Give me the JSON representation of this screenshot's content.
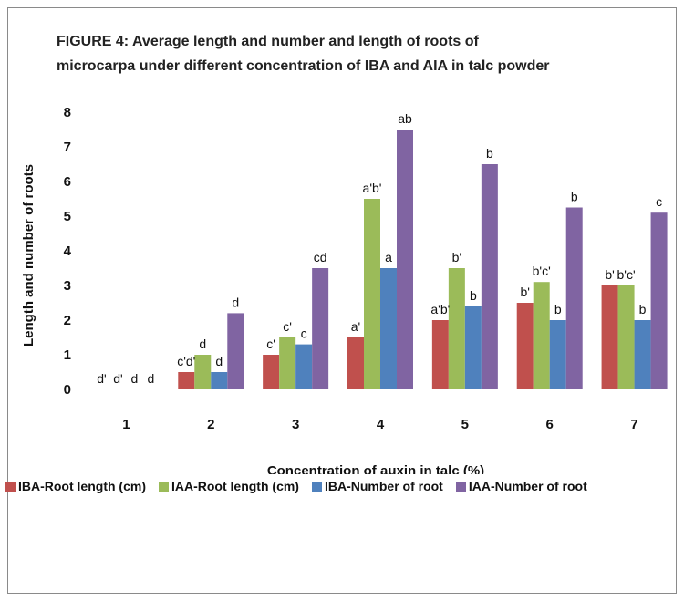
{
  "title_lines": [
    "FIGURE 4: Average length and number and length of roots of",
    "microcarpa under different concentration of IBA and AIA in talc powder"
  ],
  "chart_data": {
    "type": "bar",
    "title": "FIGURE 4: Average length and number and length of roots of microcarpa under different concentration of IBA and AIA in talc powder",
    "xlabel": "Concentration of auxin in talc (%)",
    "ylabel": "Length and number of roots",
    "categories": [
      "1",
      "2",
      "3",
      "4",
      "5",
      "6",
      "7"
    ],
    "ylim": [
      0,
      8
    ],
    "yticks": [
      "0",
      "1",
      "2",
      "3",
      "4",
      "5",
      "6",
      "7",
      "8"
    ],
    "grid": false,
    "legend_position": "bottom",
    "series": [
      {
        "name": "IBA-Root length (cm)",
        "color": "#c0504d",
        "values": [
          0,
          0.5,
          1.0,
          1.5,
          2.0,
          2.5,
          3.0
        ],
        "labels": [
          "d'",
          "c'd'",
          "c'",
          "a'",
          "a'b'",
          "b'",
          "b'"
        ]
      },
      {
        "name": "IAA-Root length (cm)",
        "color": "#9bbb59",
        "values": [
          0,
          1.0,
          1.5,
          5.5,
          3.5,
          3.1,
          3.0
        ],
        "labels": [
          "d'",
          "d",
          "c'",
          "a'b'",
          "b'",
          "b'c'",
          "b'c'"
        ]
      },
      {
        "name": "IBA-Number of root",
        "color": "#4f81bd",
        "values": [
          0,
          0.5,
          1.3,
          3.5,
          2.4,
          2.0,
          2.0
        ],
        "labels": [
          "d",
          "d",
          "c",
          "a",
          "b",
          "b",
          "b"
        ]
      },
      {
        "name": "IAA-Number of root",
        "color": "#8064a2",
        "values": [
          0,
          2.2,
          3.5,
          7.5,
          6.5,
          5.25,
          5.1
        ],
        "labels": [
          "d",
          "d",
          "cd",
          "ab",
          "b",
          "b",
          "c"
        ]
      }
    ]
  }
}
